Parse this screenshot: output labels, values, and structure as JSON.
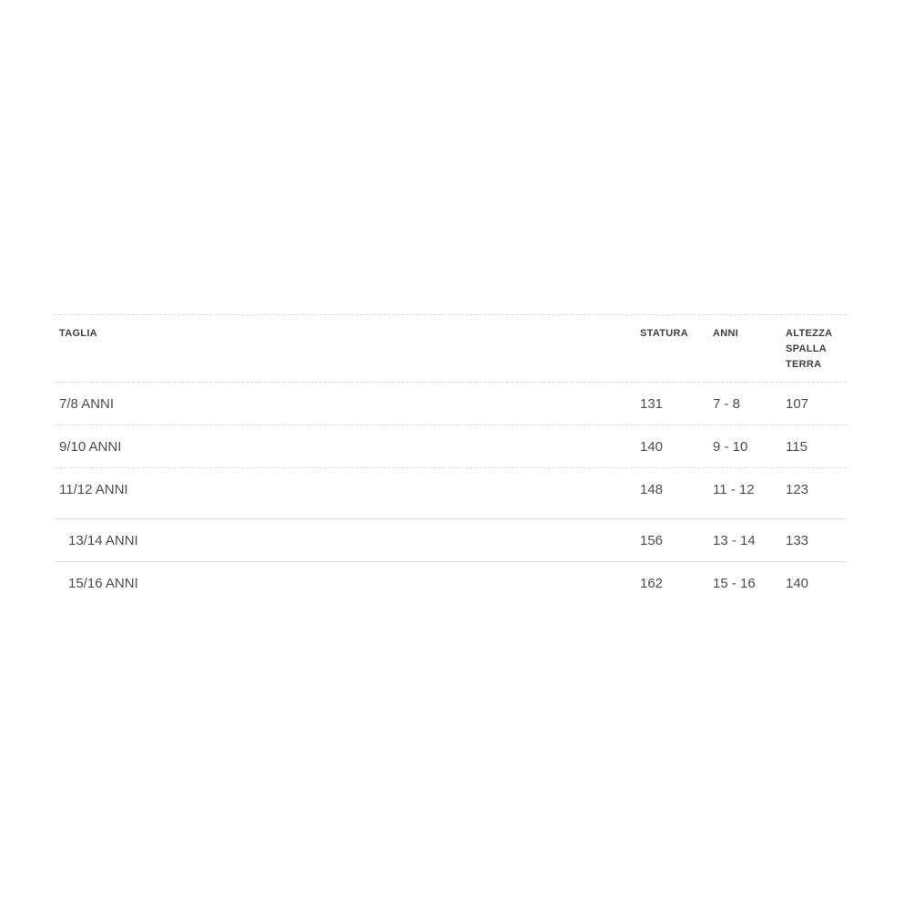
{
  "page": {
    "background_color": "#ffffff"
  },
  "size_table": {
    "title": "size-guide-table",
    "colors": {
      "header_text": "#3f3f3f",
      "body_text": "#4d4d4d",
      "divider_dashed": "#dadada",
      "divider_solid": "#e0e0e0"
    },
    "header": {
      "taglia": "TAGLIA",
      "statura": "STATURA",
      "anni": "ANNI",
      "altezza": "ALTEZZA SPALLA TERRA"
    },
    "rows": [
      {
        "taglia": "7/8 ANNI",
        "statura": "131",
        "anni": "7 - 8",
        "altezza": "107"
      },
      {
        "taglia": "9/10 ANNI",
        "statura": "140",
        "anni": "9 - 10",
        "altezza": "115"
      },
      {
        "taglia": "11/12 ANNI",
        "statura": "148",
        "anni": "11 - 12",
        "altezza": "123"
      },
      {
        "taglia": "13/14 ANNI",
        "statura": "156",
        "anni": "13 - 14",
        "altezza": "133"
      },
      {
        "taglia": "15/16 ANNI",
        "statura": "162",
        "anni": "15 - 16",
        "altezza": "140"
      }
    ]
  }
}
